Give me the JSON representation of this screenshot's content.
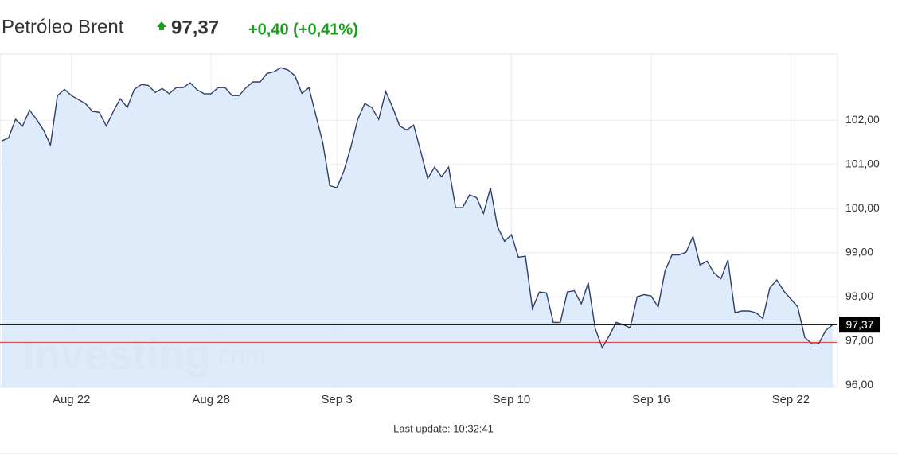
{
  "header": {
    "title": "Petróleo Brent",
    "price": "97,37",
    "change": "+0,40 (+0,41%)"
  },
  "chart_data": {
    "type": "area",
    "series": [
      {
        "color": "#2f3d6b",
        "fill": "#d9e9fb",
        "values": [
          101.53,
          101.6,
          102.02,
          101.87,
          102.23,
          102.02,
          101.78,
          101.44,
          102.56,
          102.7,
          102.56,
          102.47,
          102.38,
          102.2,
          102.18,
          101.87,
          102.2,
          102.49,
          102.29,
          102.7,
          102.81,
          102.79,
          102.63,
          102.72,
          102.6,
          102.74,
          102.74,
          102.85,
          102.69,
          102.6,
          102.6,
          102.74,
          102.74,
          102.56,
          102.56,
          102.74,
          102.87,
          102.87,
          103.06,
          103.1,
          103.19,
          103.14,
          103.01,
          102.61,
          102.74,
          102.11,
          101.48,
          100.52,
          100.47,
          100.85,
          101.39,
          102.02,
          102.38,
          102.29,
          102.02,
          102.65,
          102.29,
          101.87,
          101.78,
          101.89,
          101.3,
          100.68,
          100.94,
          100.72,
          100.94,
          100.02,
          100.02,
          100.31,
          100.25,
          99.89,
          100.47,
          99.59,
          99.26,
          99.41,
          98.9,
          98.92,
          97.73,
          98.11,
          98.09,
          97.42,
          97.42,
          98.11,
          98.14,
          97.84,
          98.32,
          97.28,
          96.85,
          97.12,
          97.42,
          97.37,
          97.3,
          98.0,
          98.05,
          98.02,
          97.77,
          98.59,
          98.95,
          98.95,
          99.01,
          99.37,
          98.72,
          98.81,
          98.54,
          98.41,
          98.83,
          97.64,
          97.68,
          97.68,
          97.64,
          97.51,
          98.2,
          98.38,
          98.13,
          97.95,
          97.77,
          97.08,
          96.94,
          96.94,
          97.24,
          97.37
        ]
      }
    ],
    "xlim": [
      0,
      119
    ],
    "xticks": [
      {
        "value": 10,
        "label": "Aug 22"
      },
      {
        "value": 30,
        "label": "Aug 28"
      },
      {
        "value": 48,
        "label": "Sep 3"
      },
      {
        "value": 73,
        "label": "Sep 10"
      },
      {
        "value": 93,
        "label": "Sep 16"
      },
      {
        "value": 113,
        "label": "Sep 22"
      }
    ],
    "ylim": [
      95.95,
      103.5
    ],
    "yticks": [
      {
        "value": 96,
        "label": "96,00"
      },
      {
        "value": 97,
        "label": "97,00"
      },
      {
        "value": 98,
        "label": "98,00"
      },
      {
        "value": 99,
        "label": "99,00"
      },
      {
        "value": 100,
        "label": "100,00"
      },
      {
        "value": 101,
        "label": "101,00"
      },
      {
        "value": 102,
        "label": "102,00"
      }
    ],
    "grid": true,
    "last_price": {
      "value": 97.37,
      "label": "97,37",
      "color": "#000000"
    },
    "prev_close": {
      "value": 96.97,
      "color": "#d9363e"
    },
    "watermark": {
      "brand": "Investing",
      "suffix": ".com"
    },
    "footer": "Last update: 10:32:41"
  }
}
